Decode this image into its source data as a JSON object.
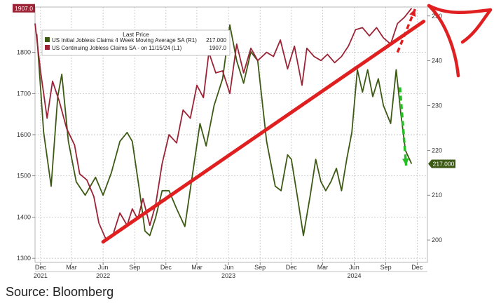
{
  "chart_data": {
    "type": "line",
    "legend": {
      "header": "Last Price",
      "placement": "top-left",
      "entries": [
        {
          "label": "US Initial Jobless Claims 4 Week Moving Average SA  (R1)",
          "value": "217.000",
          "color": "#3d5a14"
        },
        {
          "label": "US Continuing Jobless Claims SA -  on 11/15/24  (L1)",
          "value": "1907.0",
          "color": "#9b2335"
        }
      ]
    },
    "left_axis": {
      "range": [
        1290,
        1910
      ],
      "ticks": [
        "1300",
        "1400",
        "1500",
        "1600",
        "1700",
        "1800"
      ]
    },
    "right_axis": {
      "range": [
        195,
        252
      ],
      "ticks": [
        "200",
        "210",
        "220",
        "230",
        "240",
        "250"
      ]
    },
    "x_axis": {
      "range": [
        "2021-11-15",
        "2024-12-31"
      ],
      "ticks": [
        {
          "date": "2021-12-01",
          "label": "Dec"
        },
        {
          "date": "2022-03-01",
          "label": "Mar"
        },
        {
          "date": "2022-06-01",
          "label": "Jun"
        },
        {
          "date": "2022-09-01",
          "label": "Sep"
        },
        {
          "date": "2022-12-01",
          "label": "Dec"
        },
        {
          "date": "2023-03-01",
          "label": "Mar"
        },
        {
          "date": "2023-06-01",
          "label": "Jun"
        },
        {
          "date": "2023-09-01",
          "label": "Sep"
        },
        {
          "date": "2023-12-01",
          "label": "Dec"
        },
        {
          "date": "2024-03-01",
          "label": "Mar"
        },
        {
          "date": "2024-06-01",
          "label": "Jun"
        },
        {
          "date": "2024-09-01",
          "label": "Sep"
        },
        {
          "date": "2024-12-01",
          "label": "Dec"
        }
      ],
      "years": [
        {
          "date": "2021-12-01",
          "label": "2021"
        },
        {
          "date": "2022-06-01",
          "label": "2022"
        },
        {
          "date": "2023-06-01",
          "label": "2023"
        },
        {
          "date": "2024-06-01",
          "label": "2024"
        }
      ]
    },
    "last_labels": {
      "left": "1907.0",
      "right": "217.000"
    },
    "series": [
      {
        "name": "US Initial Jobless Claims 4 Week Moving Average SA  (R1)",
        "axis": "right",
        "color": "#3d5a14",
        "points": [
          [
            "2021-11-20",
            246
          ],
          [
            "2021-12-10",
            224
          ],
          [
            "2022-01-01",
            212
          ],
          [
            "2022-01-20",
            232
          ],
          [
            "2022-02-01",
            237
          ],
          [
            "2022-02-20",
            222
          ],
          [
            "2022-03-15",
            213
          ],
          [
            "2022-04-10",
            210
          ],
          [
            "2022-05-10",
            214
          ],
          [
            "2022-06-01",
            210
          ],
          [
            "2022-06-25",
            215
          ],
          [
            "2022-07-20",
            222
          ],
          [
            "2022-08-10",
            224
          ],
          [
            "2022-08-25",
            222
          ],
          [
            "2022-09-15",
            211
          ],
          [
            "2022-10-01",
            202
          ],
          [
            "2022-10-15",
            201
          ],
          [
            "2022-11-01",
            205
          ],
          [
            "2022-11-20",
            211
          ],
          [
            "2022-12-10",
            211
          ],
          [
            "2023-01-01",
            207
          ],
          [
            "2023-01-25",
            203
          ],
          [
            "2023-02-15",
            214
          ],
          [
            "2023-03-10",
            226
          ],
          [
            "2023-03-28",
            221
          ],
          [
            "2023-04-20",
            230
          ],
          [
            "2023-05-15",
            236
          ],
          [
            "2023-06-05",
            248
          ],
          [
            "2023-06-25",
            240
          ],
          [
            "2023-07-15",
            235
          ],
          [
            "2023-08-05",
            242
          ],
          [
            "2023-08-25",
            240
          ],
          [
            "2023-09-20",
            222
          ],
          [
            "2023-10-15",
            212
          ],
          [
            "2023-11-01",
            211
          ],
          [
            "2023-11-20",
            219
          ],
          [
            "2023-12-01",
            218
          ],
          [
            "2023-12-20",
            209
          ],
          [
            "2024-01-05",
            201
          ],
          [
            "2024-01-25",
            210
          ],
          [
            "2024-02-10",
            218
          ],
          [
            "2024-02-25",
            213
          ],
          [
            "2024-03-10",
            211
          ],
          [
            "2024-03-25",
            213
          ],
          [
            "2024-04-10",
            216
          ],
          [
            "2024-04-25",
            211
          ],
          [
            "2024-05-10",
            218
          ],
          [
            "2024-05-25",
            224
          ],
          [
            "2024-06-10",
            238
          ],
          [
            "2024-06-25",
            233
          ],
          [
            "2024-07-10",
            238
          ],
          [
            "2024-07-25",
            232
          ],
          [
            "2024-08-10",
            236
          ],
          [
            "2024-08-25",
            230
          ],
          [
            "2024-09-15",
            226
          ],
          [
            "2024-10-01",
            238
          ],
          [
            "2024-10-15",
            228
          ],
          [
            "2024-10-28",
            220
          ],
          [
            "2024-11-15",
            217
          ]
        ]
      },
      {
        "name": "US Continuing Jobless Claims SA -  on 11/15/24  (L1)",
        "axis": "left",
        "color": "#9b2335",
        "points": [
          [
            "2021-11-15",
            1870
          ],
          [
            "2021-12-01",
            1755
          ],
          [
            "2021-12-20",
            1640
          ],
          [
            "2022-01-05",
            1730
          ],
          [
            "2022-01-25",
            1680
          ],
          [
            "2022-02-15",
            1615
          ],
          [
            "2022-03-10",
            1575
          ],
          [
            "2022-03-25",
            1505
          ],
          [
            "2022-04-15",
            1490
          ],
          [
            "2022-05-05",
            1450
          ],
          [
            "2022-05-20",
            1385
          ],
          [
            "2022-06-10",
            1345
          ],
          [
            "2022-07-01",
            1360
          ],
          [
            "2022-07-20",
            1410
          ],
          [
            "2022-08-10",
            1380
          ],
          [
            "2022-08-25",
            1420
          ],
          [
            "2022-09-10",
            1395
          ],
          [
            "2022-09-25",
            1445
          ],
          [
            "2022-10-15",
            1380
          ],
          [
            "2022-11-01",
            1430
          ],
          [
            "2022-11-20",
            1530
          ],
          [
            "2022-12-10",
            1600
          ],
          [
            "2023-01-01",
            1580
          ],
          [
            "2023-01-20",
            1660
          ],
          [
            "2023-02-10",
            1640
          ],
          [
            "2023-03-01",
            1720
          ],
          [
            "2023-03-20",
            1690
          ],
          [
            "2023-04-05",
            1800
          ],
          [
            "2023-04-25",
            1750
          ],
          [
            "2023-05-15",
            1755
          ],
          [
            "2023-06-05",
            1700
          ],
          [
            "2023-06-25",
            1820
          ],
          [
            "2023-07-15",
            1750
          ],
          [
            "2023-08-05",
            1810
          ],
          [
            "2023-08-25",
            1780
          ],
          [
            "2023-09-20",
            1800
          ],
          [
            "2023-10-10",
            1790
          ],
          [
            "2023-10-30",
            1830
          ],
          [
            "2023-11-20",
            1760
          ],
          [
            "2023-12-10",
            1815
          ],
          [
            "2024-01-01",
            1720
          ],
          [
            "2024-01-15",
            1810
          ],
          [
            "2024-02-05",
            1790
          ],
          [
            "2024-02-25",
            1780
          ],
          [
            "2024-03-15",
            1795
          ],
          [
            "2024-04-05",
            1775
          ],
          [
            "2024-04-25",
            1790
          ],
          [
            "2024-05-15",
            1815
          ],
          [
            "2024-06-05",
            1855
          ],
          [
            "2024-06-25",
            1860
          ],
          [
            "2024-07-15",
            1840
          ],
          [
            "2024-08-05",
            1860
          ],
          [
            "2024-08-25",
            1835
          ],
          [
            "2024-09-15",
            1820
          ],
          [
            "2024-10-05",
            1870
          ],
          [
            "2024-10-25",
            1885
          ],
          [
            "2024-11-15",
            1907
          ]
        ]
      }
    ],
    "annotations": [
      {
        "type": "trend-line",
        "color": "#e02020",
        "from": [
          "2022-06-01",
          1340
        ],
        "to": [
          "2024-12-20",
          1875
        ]
      },
      {
        "type": "dashed-arrow",
        "color": "#e02020",
        "from": [
          "2024-10-05",
          1800
        ],
        "to": [
          "2024-11-25",
          1905
        ]
      },
      {
        "type": "dashed-arrow",
        "color": "#22c022",
        "from": [
          "2024-10-12",
          1715
        ],
        "to": [
          "2024-10-30",
          1525
        ]
      },
      {
        "type": "curved-arrow",
        "color": "#e02020"
      }
    ]
  },
  "source": "Source: Bloomberg"
}
